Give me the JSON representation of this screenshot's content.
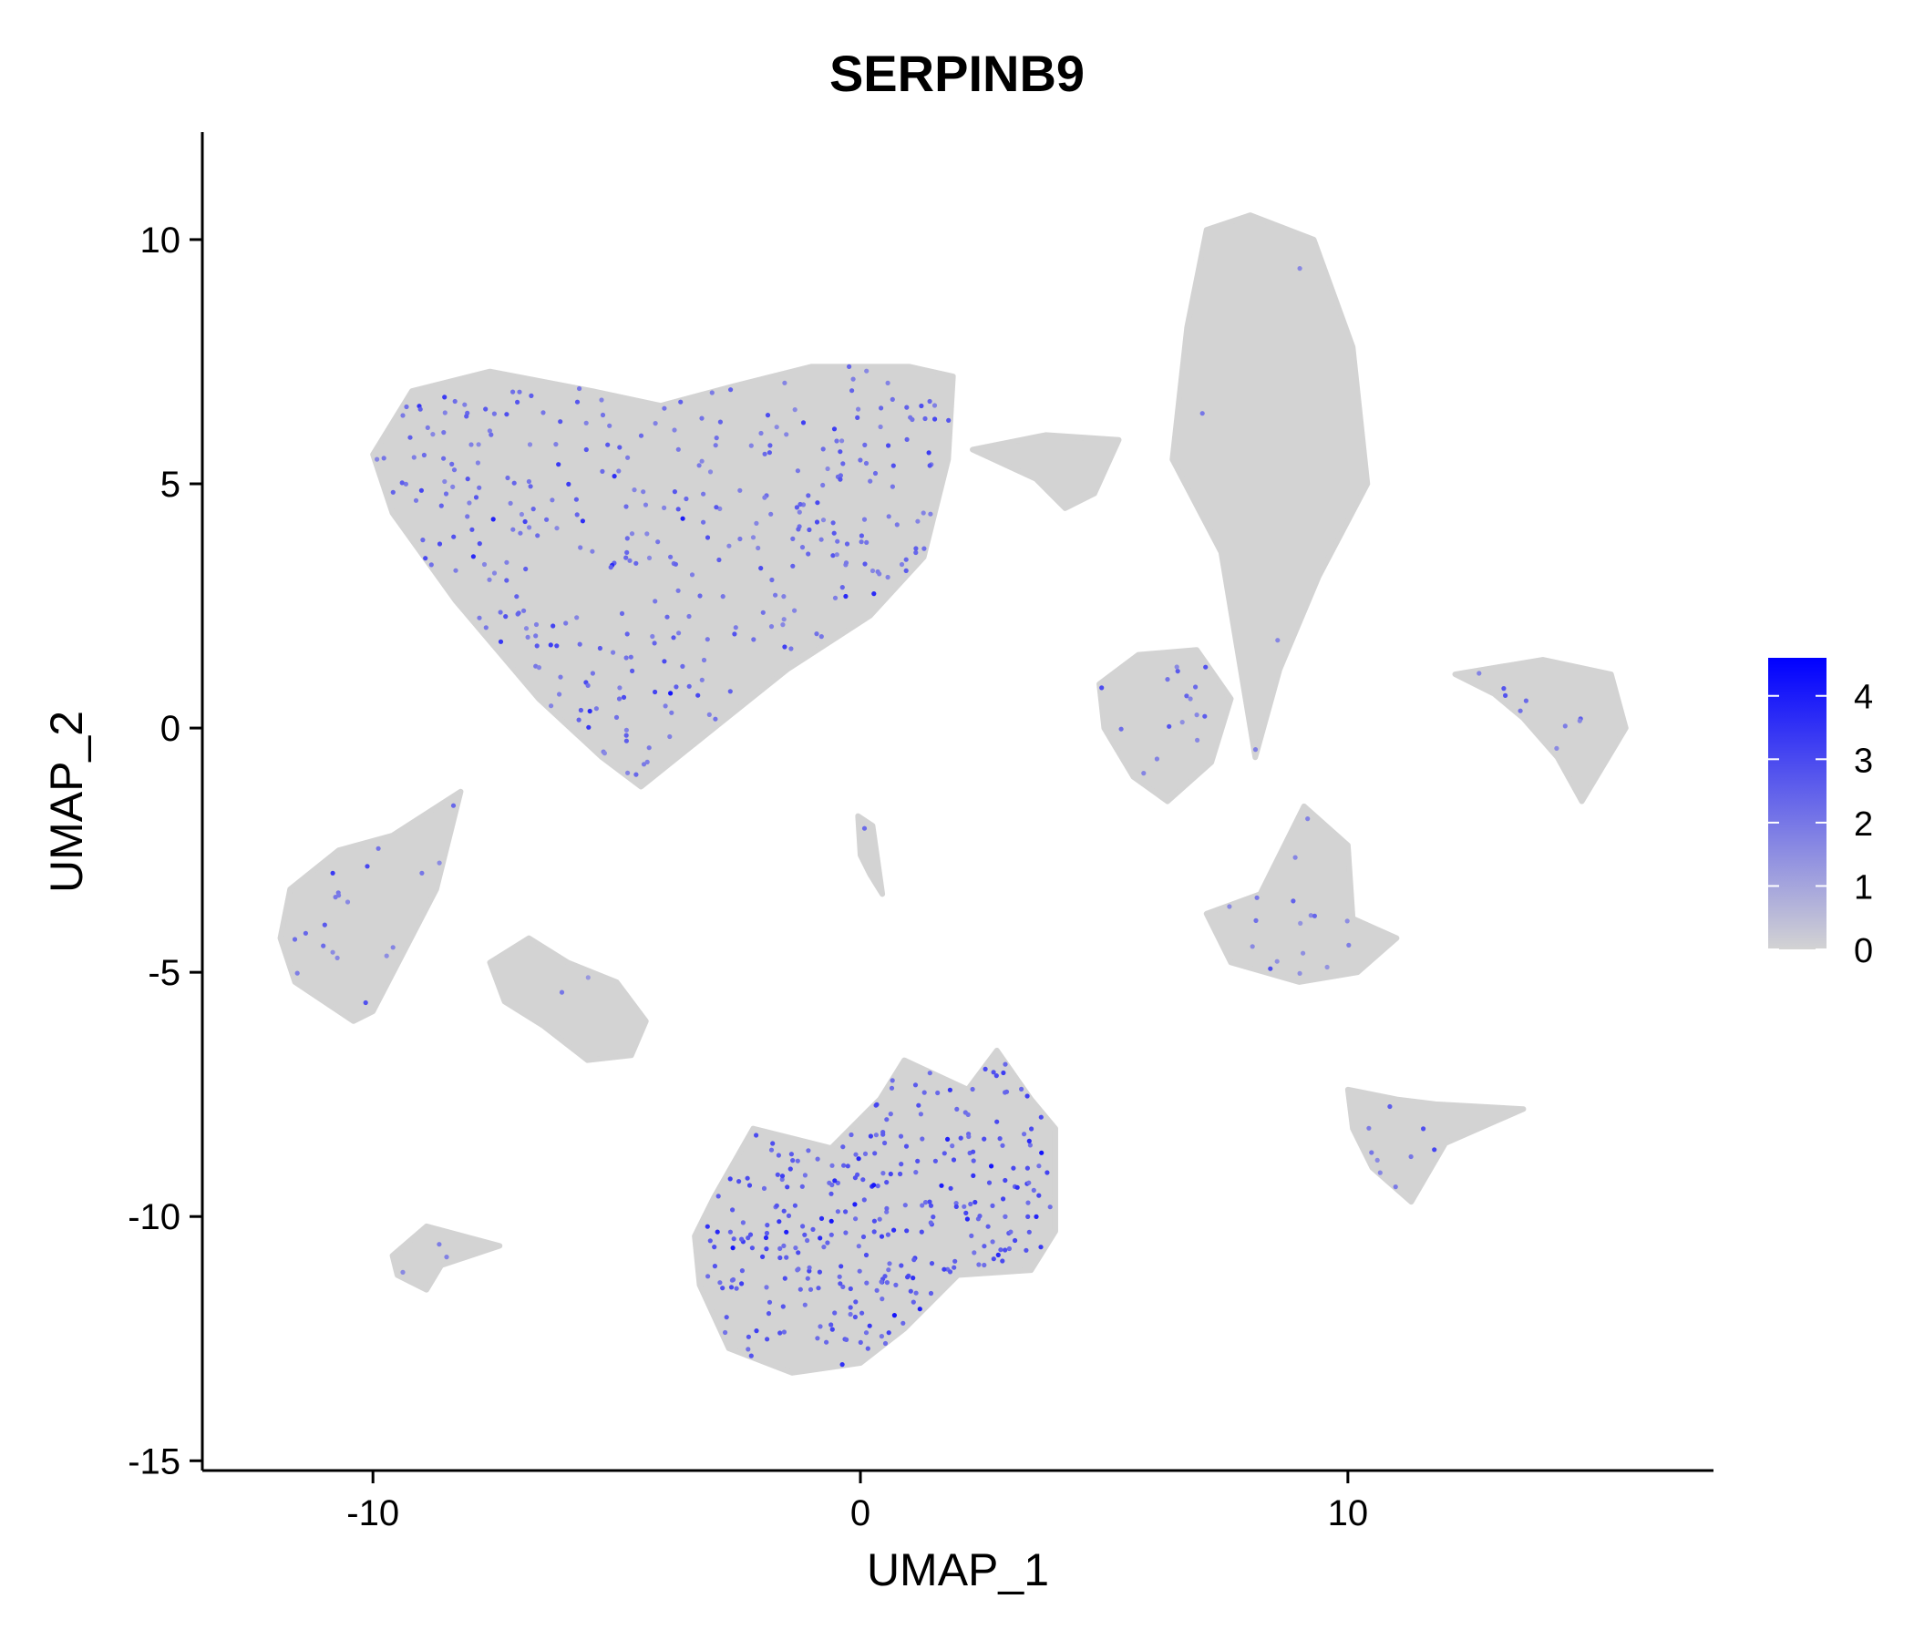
{
  "chart_data": {
    "type": "scatter",
    "title": "SERPINB9",
    "xlabel": "UMAP_1",
    "ylabel": "UMAP_2",
    "xlim": [
      -13.5,
      17.5
    ],
    "ylim": [
      -15.2,
      12.2
    ],
    "x_ticks": [
      -10,
      0,
      10
    ],
    "y_ticks": [
      10,
      5,
      0,
      -5,
      -10,
      -15
    ],
    "x_tick_labels": [
      "-10",
      "0",
      "10"
    ],
    "y_tick_labels": [
      "10",
      "5",
      "0",
      "-5",
      "-10",
      "-15"
    ],
    "grid": false,
    "legend": {
      "placement": "right",
      "labels": [
        "4",
        "3",
        "2",
        "1",
        "0"
      ],
      "values": [
        4,
        3,
        2,
        1,
        0
      ],
      "range": [
        0,
        4.6
      ]
    },
    "colors": {
      "low": "#d3d3d3",
      "high": "#0000ff"
    },
    "clusters": [
      {
        "id": "large-top-left",
        "center": [
          -4.8,
          3.4
        ],
        "spread": [
          3.8,
          2.9
        ],
        "expression": "moderate",
        "outline": [
          [
            -10,
            5.6
          ],
          [
            -9.2,
            6.9
          ],
          [
            -7.6,
            7.3
          ],
          [
            -5.5,
            6.9
          ],
          [
            -4.1,
            6.6
          ],
          [
            -2.6,
            7.0
          ],
          [
            -1.0,
            7.4
          ],
          [
            1.0,
            7.4
          ],
          [
            1.9,
            7.2
          ],
          [
            1.8,
            5.5
          ],
          [
            1.3,
            3.5
          ],
          [
            0.2,
            2.3
          ],
          [
            -1.5,
            1.2
          ],
          [
            -3.0,
            0.0
          ],
          [
            -4.5,
            -1.2
          ],
          [
            -5.3,
            -0.6
          ],
          [
            -6.6,
            0.6
          ],
          [
            -8.3,
            2.6
          ],
          [
            -9.6,
            4.4
          ]
        ]
      },
      {
        "id": "tall-top-right",
        "center": [
          8.4,
          6.0
        ],
        "spread": [
          1.2,
          3.6
        ],
        "expression": "none",
        "outline": [
          [
            7.1,
            10.2
          ],
          [
            8.0,
            10.5
          ],
          [
            9.3,
            10.0
          ],
          [
            10.1,
            7.8
          ],
          [
            10.4,
            5.0
          ],
          [
            9.4,
            3.1
          ],
          [
            8.6,
            1.2
          ],
          [
            8.1,
            -0.6
          ],
          [
            7.7,
            1.8
          ],
          [
            7.4,
            3.6
          ],
          [
            6.4,
            5.5
          ],
          [
            6.7,
            8.2
          ]
        ]
      },
      {
        "id": "small-top-middle",
        "center": [
          4.3,
          5.2
        ],
        "spread": [
          0.8,
          0.5
        ],
        "expression": "none",
        "outline": [
          [
            2.3,
            5.7
          ],
          [
            3.8,
            6.0
          ],
          [
            5.3,
            5.9
          ],
          [
            4.8,
            4.8
          ],
          [
            4.2,
            4.5
          ],
          [
            3.6,
            5.1
          ]
        ]
      },
      {
        "id": "mid-right-blob",
        "center": [
          6.3,
          0.4
        ],
        "spread": [
          0.9,
          0.9
        ],
        "expression": "low",
        "outline": [
          [
            4.9,
            0.9
          ],
          [
            5.7,
            1.5
          ],
          [
            6.9,
            1.6
          ],
          [
            7.6,
            0.6
          ],
          [
            7.2,
            -0.7
          ],
          [
            6.3,
            -1.5
          ],
          [
            5.6,
            -1.0
          ],
          [
            5.0,
            0.0
          ]
        ]
      },
      {
        "id": "far-right-crescent",
        "center": [
          14.7,
          0.3
        ],
        "spread": [
          0.9,
          0.8
        ],
        "expression": "low",
        "outline": [
          [
            12.2,
            1.1
          ],
          [
            14.0,
            1.4
          ],
          [
            15.4,
            1.1
          ],
          [
            15.7,
            0.0
          ],
          [
            14.8,
            -1.5
          ],
          [
            14.3,
            -0.6
          ],
          [
            13.6,
            0.2
          ],
          [
            13.0,
            0.7
          ]
        ]
      },
      {
        "id": "right-middle",
        "center": [
          9.0,
          -4.2
        ],
        "spread": [
          1.2,
          0.7
        ],
        "expression": "low",
        "outline": [
          [
            7.1,
            -3.8
          ],
          [
            8.2,
            -3.4
          ],
          [
            9.1,
            -1.6
          ],
          [
            10.0,
            -2.4
          ],
          [
            10.1,
            -3.9
          ],
          [
            11.0,
            -4.3
          ],
          [
            10.2,
            -5.0
          ],
          [
            9.0,
            -5.2
          ],
          [
            7.6,
            -4.8
          ]
        ]
      },
      {
        "id": "left-middle",
        "center": [
          -10.6,
          -4.1
        ],
        "spread": [
          1.1,
          1.1
        ],
        "expression": "low",
        "outline": [
          [
            -11.7,
            -3.3
          ],
          [
            -10.7,
            -2.5
          ],
          [
            -9.6,
            -2.2
          ],
          [
            -8.2,
            -1.3
          ],
          [
            -8.7,
            -3.3
          ],
          [
            -10.0,
            -5.8
          ],
          [
            -10.4,
            -6.0
          ],
          [
            -11.6,
            -5.2
          ],
          [
            -11.9,
            -4.3
          ]
        ]
      },
      {
        "id": "center-left-middle",
        "center": [
          -6.2,
          -5.8
        ],
        "spread": [
          1.1,
          0.6
        ],
        "expression": "none",
        "outline": [
          [
            -7.6,
            -4.8
          ],
          [
            -6.8,
            -4.3
          ],
          [
            -6.0,
            -4.8
          ],
          [
            -5.0,
            -5.2
          ],
          [
            -4.4,
            -6.0
          ],
          [
            -4.7,
            -6.7
          ],
          [
            -5.6,
            -6.8
          ],
          [
            -6.5,
            -6.1
          ],
          [
            -7.3,
            -5.6
          ]
        ]
      },
      {
        "id": "bottom-center",
        "center": [
          0.8,
          -10.4
        ],
        "spread": [
          2.5,
          1.5
        ],
        "expression": "high",
        "outline": [
          [
            -3.0,
            -9.6
          ],
          [
            -2.2,
            -8.2
          ],
          [
            -0.6,
            -8.6
          ],
          [
            0.4,
            -7.6
          ],
          [
            0.9,
            -6.8
          ],
          [
            2.2,
            -7.4
          ],
          [
            2.8,
            -6.6
          ],
          [
            3.5,
            -7.6
          ],
          [
            4.0,
            -8.2
          ],
          [
            4.0,
            -10.3
          ],
          [
            3.5,
            -11.1
          ],
          [
            2.0,
            -11.2
          ],
          [
            0.9,
            -12.3
          ],
          [
            0.0,
            -13.0
          ],
          [
            -1.4,
            -13.2
          ],
          [
            -2.7,
            -12.7
          ],
          [
            -3.3,
            -11.4
          ],
          [
            -3.4,
            -10.4
          ]
        ]
      },
      {
        "id": "bottom-right",
        "center": [
          11.2,
          -8.3
        ],
        "spread": [
          0.7,
          0.5
        ],
        "expression": "low",
        "outline": [
          [
            10.0,
            -7.4
          ],
          [
            11.0,
            -7.6
          ],
          [
            11.8,
            -7.7
          ],
          [
            13.6,
            -7.8
          ],
          [
            12.0,
            -8.5
          ],
          [
            11.3,
            -9.7
          ],
          [
            10.5,
            -9.0
          ],
          [
            10.1,
            -8.2
          ]
        ]
      },
      {
        "id": "bottom-left-small",
        "center": [
          -9.0,
          -11.0
        ],
        "spread": [
          0.5,
          0.25
        ],
        "expression": "moderate",
        "outline": [
          [
            -9.6,
            -10.8
          ],
          [
            -8.9,
            -10.2
          ],
          [
            -7.4,
            -10.6
          ],
          [
            -8.6,
            -11.0
          ],
          [
            -8.9,
            -11.5
          ],
          [
            -9.5,
            -11.2
          ]
        ]
      },
      {
        "id": "center-tiny",
        "center": [
          0.2,
          -2.6
        ],
        "spread": [
          0.12,
          0.6
        ],
        "expression": "none",
        "outline": [
          [
            -0.05,
            -1.8
          ],
          [
            0.25,
            -2.0
          ],
          [
            0.45,
            -3.4
          ],
          [
            0.2,
            -3.0
          ],
          [
            0.0,
            -2.6
          ]
        ]
      }
    ]
  }
}
